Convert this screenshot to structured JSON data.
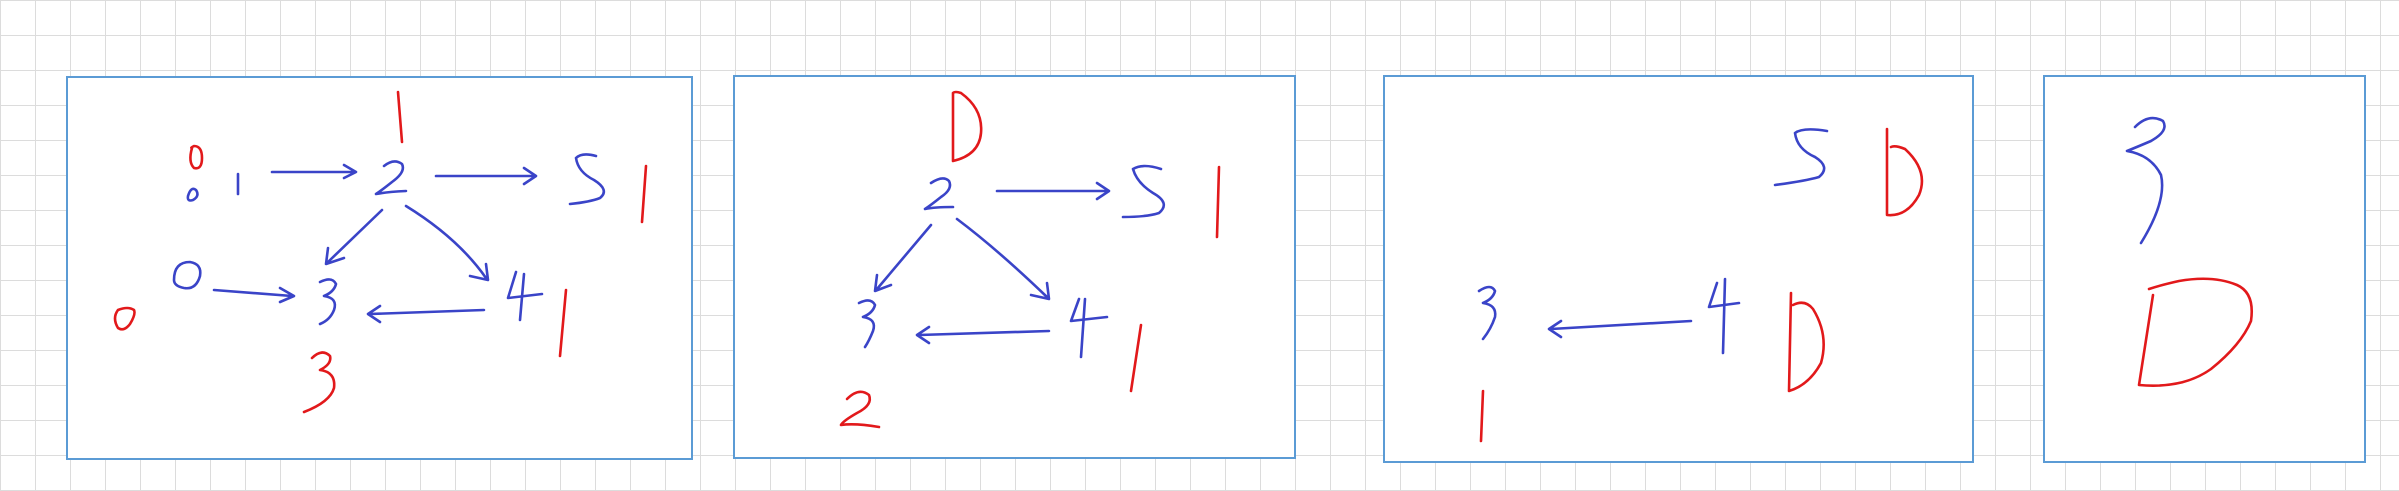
{
  "colors": {
    "blue_ink": "#3a44c8",
    "red_ink": "#e2191b",
    "panel_border": "#5b9bd5",
    "grid": "#dcdcdc"
  },
  "panels": [
    {
      "id": "panel-1",
      "nodes": [
        "0",
        "1",
        "2",
        "5",
        "0",
        "3",
        "4"
      ],
      "red_labels": [
        "0",
        "1",
        "1",
        "0",
        "3",
        "1"
      ]
    },
    {
      "id": "panel-2",
      "nodes": [
        "2",
        "5",
        "3",
        "4"
      ],
      "red_labels": [
        "0",
        "1",
        "2",
        "1"
      ]
    },
    {
      "id": "panel-3",
      "nodes": [
        "5",
        "3",
        "4"
      ],
      "red_labels": [
        "0",
        "1",
        "0"
      ]
    },
    {
      "id": "panel-4",
      "nodes": [
        "3"
      ],
      "red_labels": [
        "0"
      ]
    }
  ]
}
